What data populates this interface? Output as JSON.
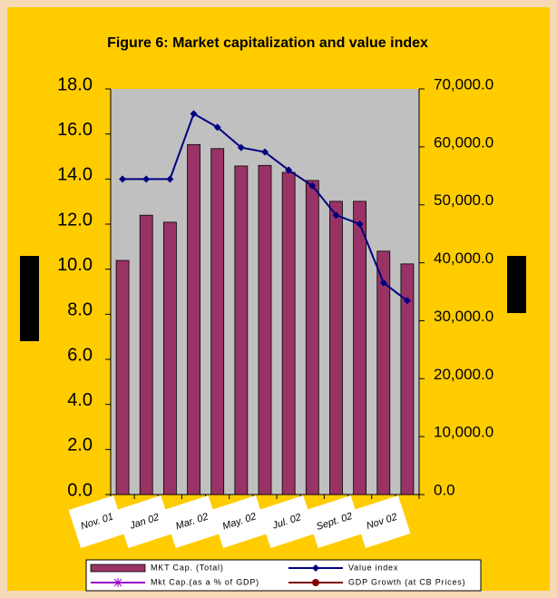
{
  "chart_data": {
    "type": "bar_line",
    "title": "Figure 6: Market capitalization and value index",
    "categories": [
      "Nov. 01",
      null,
      "Jan 02",
      null,
      "Mar. 02",
      null,
      "May. 02",
      null,
      "Jul. 02",
      null,
      "Sept. 02",
      null,
      "Nov 02"
    ],
    "series": [
      {
        "name": "MKT Cap. (Total)",
        "type": "bar",
        "axis": "y2",
        "color": "#993366",
        "values": [
          40400,
          48200,
          47000,
          60400,
          59700,
          56700,
          56800,
          55600,
          54200,
          50600,
          50600,
          42000,
          39800
        ]
      },
      {
        "name": "Value index",
        "type": "line",
        "marker": "diamond",
        "color": "#000080",
        "values": [
          14.0,
          14.0,
          14.0,
          16.9,
          16.3,
          15.4,
          15.2,
          14.4,
          13.7,
          12.4,
          12.0,
          9.4,
          8.6
        ]
      },
      {
        "name": "Mkt Cap.(as a % of GDP)",
        "type": "line",
        "marker": "asterisk",
        "color": "#9900cc",
        "values": [
          null,
          null,
          null,
          null,
          null,
          null,
          null,
          null,
          null,
          null,
          null,
          null,
          null
        ]
      },
      {
        "name": "GDP Growth (at CB Prices)",
        "type": "line",
        "marker": "circle",
        "color": "#800000",
        "values": [
          null,
          null,
          null,
          null,
          null,
          null,
          null,
          null,
          null,
          null,
          null,
          null,
          null
        ]
      }
    ],
    "ylim": [
      0,
      18
    ],
    "yticks": [
      {
        "value": 0,
        "label": "0.0"
      },
      {
        "value": 2,
        "label": "2.0"
      },
      {
        "value": 4,
        "label": "4.0"
      },
      {
        "value": 6,
        "label": "6.0"
      },
      {
        "value": 8,
        "label": "8.0"
      },
      {
        "value": 10,
        "label": "10.0"
      },
      {
        "value": 12,
        "label": "12.0"
      },
      {
        "value": 14,
        "label": "14.0"
      },
      {
        "value": 16,
        "label": "16.0"
      },
      {
        "value": 18,
        "label": "18.0"
      }
    ],
    "y2lim": [
      0,
      70000
    ],
    "y2ticks": [
      {
        "value": 0,
        "label": "0.0"
      },
      {
        "value": 10000,
        "label": "10,000.0"
      },
      {
        "value": 20000,
        "label": "20,000.0"
      },
      {
        "value": 30000,
        "label": "30,000.0"
      },
      {
        "value": 40000,
        "label": "40,000.0"
      },
      {
        "value": 50000,
        "label": "50,000.0"
      },
      {
        "value": 60000,
        "label": "60,000.0"
      },
      {
        "value": 70000,
        "label": "70,000.0"
      }
    ],
    "plot_color": "#c0c0c0",
    "legend": "bottom"
  }
}
